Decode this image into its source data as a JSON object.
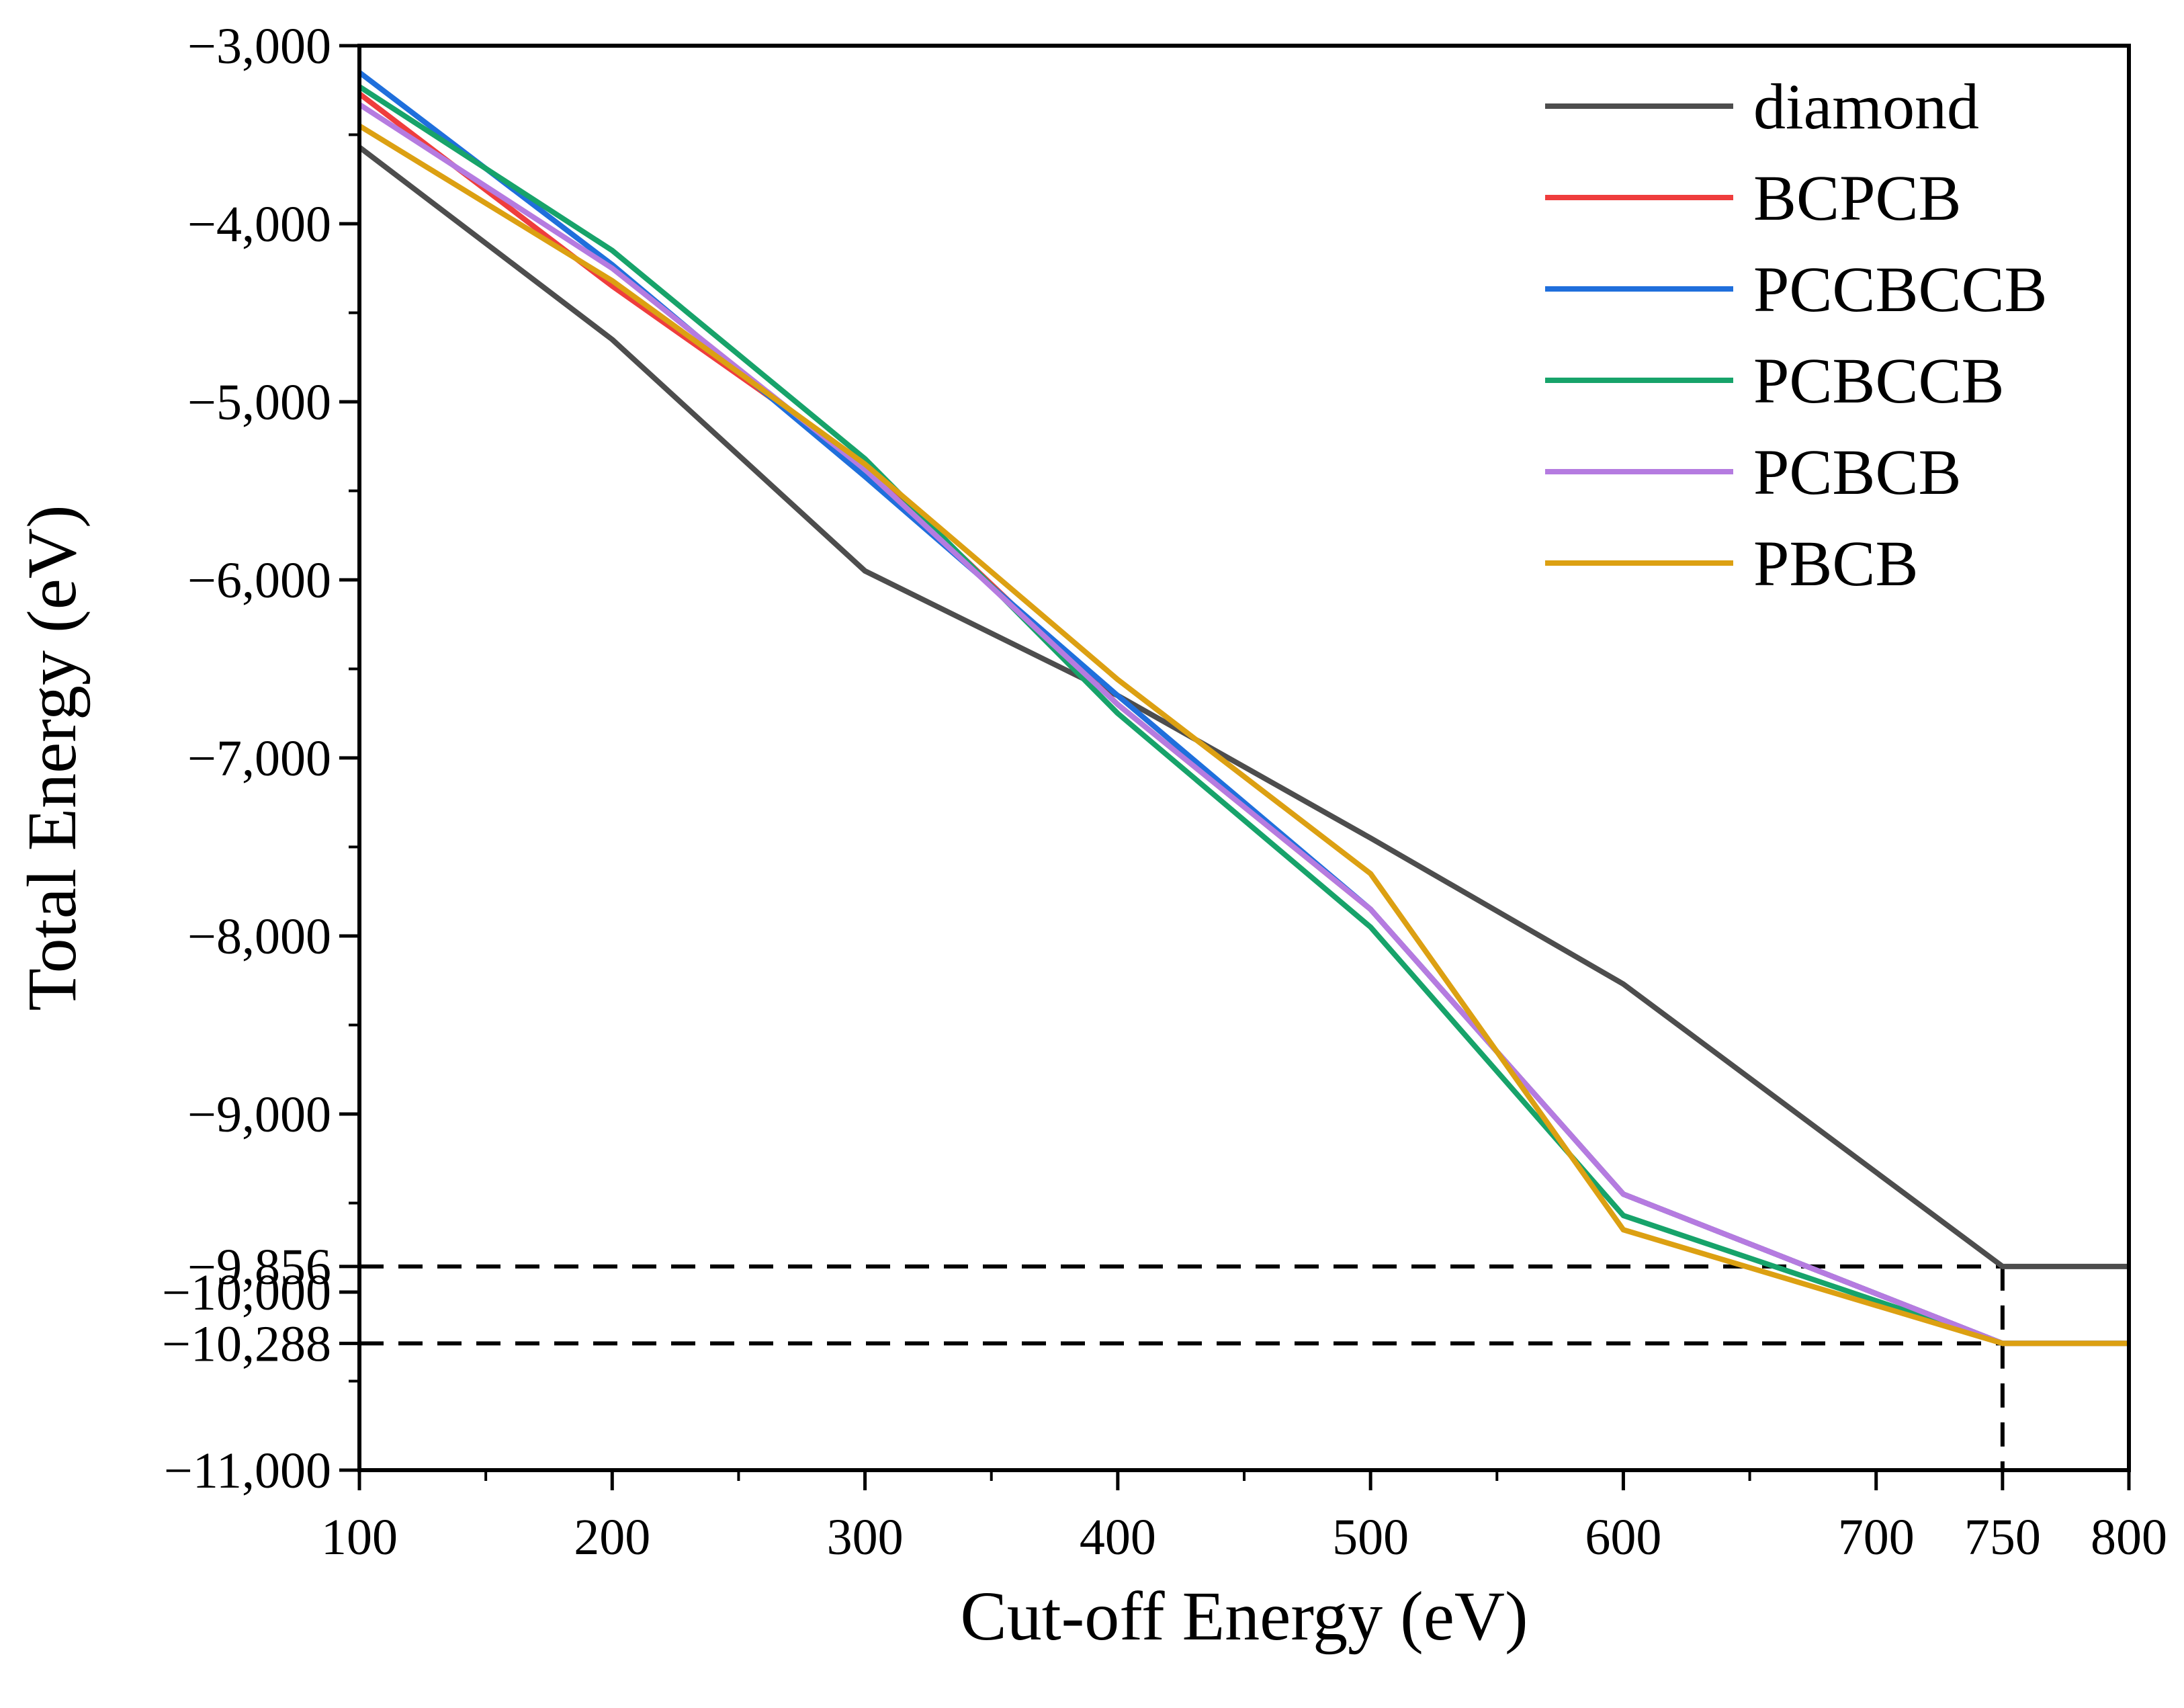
{
  "chart_data": {
    "type": "line",
    "title": "",
    "xlabel": "Cut-off Energy (eV)",
    "ylabel": "Total Energy (eV)",
    "xlim": [
      100,
      800
    ],
    "ylim": [
      -11000,
      -3000
    ],
    "x_ticks": [
      100,
      200,
      300,
      400,
      500,
      600,
      700,
      750,
      800
    ],
    "y_ticks": [
      -3000,
      -4000,
      -5000,
      -6000,
      -7000,
      -8000,
      -9000,
      -9856,
      -10000,
      -10288,
      -11000
    ],
    "x_tick_labels": [
      "100",
      "200",
      "300",
      "400",
      "500",
      "600",
      "700",
      "750",
      "800"
    ],
    "y_tick_labels": [
      "−3,000",
      "−4,000",
      "−5,000",
      "−6,000",
      "−7,000",
      "−8,000",
      "−9,000",
      "−9,856",
      "−10,000",
      "−10,288",
      "−11,000"
    ],
    "grid": false,
    "legend_position": "top-right",
    "reference_lines": [
      {
        "kind": "horizontal",
        "y": -9856,
        "x_from": 100,
        "x_to": 750,
        "style": "dashed"
      },
      {
        "kind": "horizontal",
        "y": -10288,
        "x_from": 100,
        "x_to": 750,
        "style": "dashed"
      },
      {
        "kind": "vertical",
        "x": 750,
        "y_from": -9856,
        "y_to": -11000,
        "style": "dashed"
      }
    ],
    "x": [
      100,
      200,
      300,
      400,
      500,
      600,
      750,
      800
    ],
    "series": [
      {
        "name": "diamond",
        "color": "#4d4d4d",
        "values": [
          -3570,
          -4650,
          -5950,
          -6650,
          -7450,
          -8270,
          -9856,
          -9856
        ]
      },
      {
        "name": "BCPCB",
        "color": "#ef3d3d",
        "values": [
          -3270,
          -4350,
          -5350,
          -6700,
          -7850,
          -9450,
          -10288,
          -10288
        ]
      },
      {
        "name": "PCCBCCB",
        "color": "#1f6fdc",
        "values": [
          -3150,
          -4230,
          -5420,
          -6650,
          -7850,
          -9450,
          -10288,
          -10288
        ]
      },
      {
        "name": "PCBCCB",
        "color": "#17a36a",
        "values": [
          -3230,
          -4150,
          -5320,
          -6750,
          -7950,
          -9570,
          -10288,
          -10288
        ]
      },
      {
        "name": "PCBCB",
        "color": "#b57be0",
        "values": [
          -3330,
          -4250,
          -5380,
          -6700,
          -7850,
          -9450,
          -10288,
          -10288
        ]
      },
      {
        "name": "PBCB",
        "color": "#dca012",
        "values": [
          -3450,
          -4320,
          -5350,
          -6560,
          -7650,
          -9650,
          -10288,
          -10288
        ]
      }
    ]
  }
}
